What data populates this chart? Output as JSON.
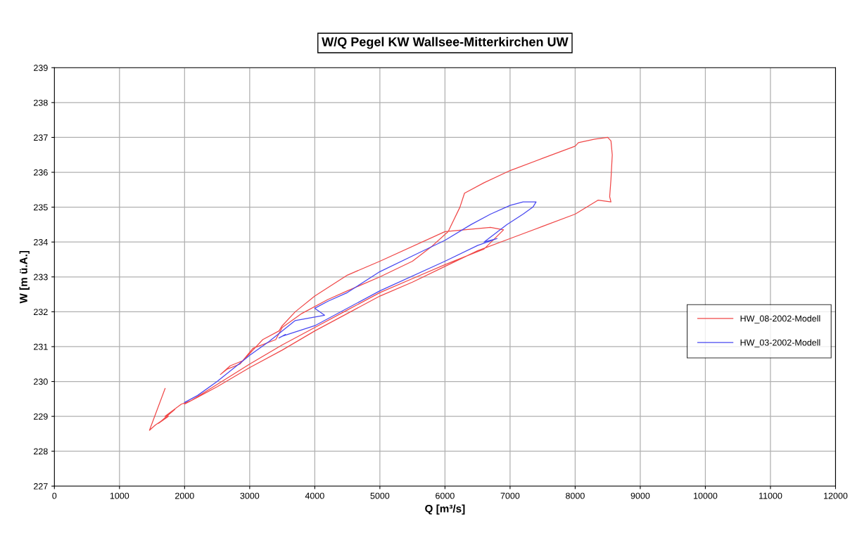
{
  "chart_data": {
    "type": "line",
    "title": "W/Q Pegel KW Wallsee-Mitterkirchen UW",
    "xlabel": "Q [m³/s]",
    "ylabel": "W [m ü.A.]",
    "xlim": [
      0,
      12000
    ],
    "xticks": [
      0,
      1000,
      2000,
      3000,
      4000,
      5000,
      6000,
      7000,
      8000,
      9000,
      10000,
      11000,
      12000
    ],
    "ylim": [
      227,
      239
    ],
    "yticks": [
      227,
      228,
      229,
      230,
      231,
      232,
      233,
      234,
      235,
      236,
      237,
      238,
      239
    ],
    "grid": true,
    "legend": "right",
    "marker": "none",
    "line_style": "solid",
    "series": [
      {
        "name": "HW_08-2002-Modell",
        "color": "#f04848",
        "x": [
          1700,
          1460,
          1550,
          1750,
          1600,
          1850,
          1700,
          1950,
          2100,
          2400,
          3000,
          3500,
          4000,
          4500,
          5000,
          5500,
          6000,
          6600,
          6900,
          6700,
          6000,
          5000,
          4500,
          4000,
          3700,
          3500,
          3450,
          3200,
          3050,
          2900,
          2700,
          2550,
          2650,
          2850,
          3050,
          3400,
          3500,
          3800,
          4200,
          4500,
          5000,
          5500,
          5800,
          6050,
          6100,
          6230,
          6300,
          6600,
          7000,
          7500,
          8000,
          8050,
          8300,
          8500,
          8550,
          8570,
          8550,
          8530,
          8550,
          8350,
          8000,
          7500,
          7000,
          6500,
          6000,
          5500,
          5000,
          4500,
          4000,
          3500,
          3000,
          2500,
          2200,
          2000
        ],
        "values": [
          229.8,
          228.6,
          228.75,
          229.0,
          228.8,
          229.2,
          229.0,
          229.35,
          229.45,
          229.8,
          230.5,
          231.05,
          231.55,
          232.05,
          232.55,
          232.95,
          233.35,
          233.8,
          234.35,
          234.42,
          234.3,
          233.45,
          233.05,
          232.45,
          232.0,
          231.6,
          231.45,
          231.2,
          230.9,
          230.6,
          230.45,
          230.2,
          230.35,
          230.5,
          230.95,
          231.2,
          231.55,
          231.95,
          232.35,
          232.6,
          233.0,
          233.45,
          233.88,
          234.3,
          234.5,
          235.0,
          235.4,
          235.7,
          236.05,
          236.4,
          236.75,
          236.85,
          236.95,
          237.0,
          236.9,
          236.5,
          235.8,
          235.3,
          235.15,
          235.2,
          234.8,
          234.45,
          234.1,
          233.75,
          233.3,
          232.85,
          232.45,
          231.95,
          231.45,
          230.9,
          230.4,
          229.85,
          229.55,
          229.35
        ]
      },
      {
        "name": "HW_03-2002-Modell",
        "color": "#4848f0",
        "x": [
          3450,
          3550,
          3500,
          4000,
          5000,
          6000,
          6500,
          6800,
          6600,
          6950,
          7200,
          7350,
          7400,
          7200,
          7000,
          6700,
          6400,
          6000,
          5500,
          5000,
          4500,
          4200,
          4000,
          4150,
          3700,
          3300,
          3000,
          2500,
          2200,
          2000
        ],
        "values": [
          231.25,
          231.35,
          231.3,
          231.6,
          232.6,
          233.45,
          233.9,
          234.1,
          234.0,
          234.5,
          234.8,
          235.0,
          235.15,
          235.15,
          235.05,
          234.8,
          234.5,
          234.05,
          233.6,
          233.15,
          232.55,
          232.3,
          232.1,
          231.9,
          231.75,
          231.15,
          230.75,
          230.0,
          229.6,
          229.4
        ]
      }
    ]
  }
}
